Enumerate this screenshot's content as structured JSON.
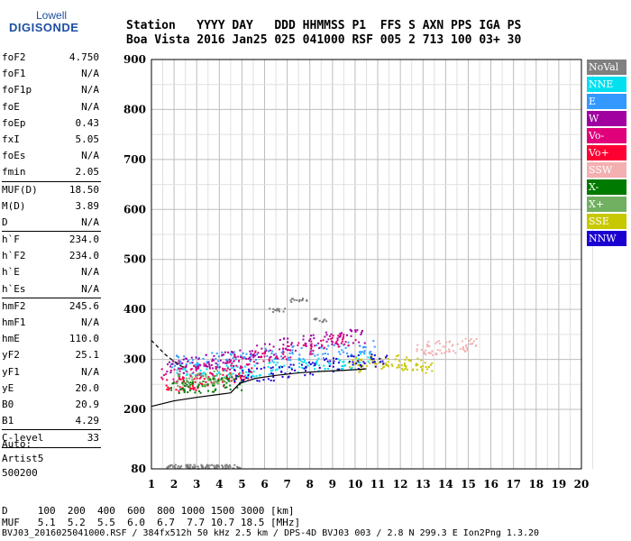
{
  "logo": {
    "top": "Lowell",
    "bottom": "DIGISONDE"
  },
  "header": {
    "line1": "Station   YYYY DAY   DDD HHMMSS P1  FFS S AXN PPS IGA PS",
    "line2": "Boa Vista 2016 Jan25 025 041000 RSF 005 2 713 100 03+ 30"
  },
  "params": [
    [
      {
        "name": "foF2",
        "value": "4.750"
      },
      {
        "name": "foF1",
        "value": "N/A"
      },
      {
        "name": "foF1p",
        "value": "N/A"
      },
      {
        "name": "foE",
        "value": "N/A"
      },
      {
        "name": "foEp",
        "value": "0.43"
      },
      {
        "name": "fxI",
        "value": "5.05"
      },
      {
        "name": "foEs",
        "value": "N/A"
      },
      {
        "name": "fmin",
        "value": "2.05"
      }
    ],
    [
      {
        "name": "MUF(D)",
        "value": "18.50"
      },
      {
        "name": "M(D)",
        "value": "3.89"
      },
      {
        "name": "D",
        "value": "N/A"
      }
    ],
    [
      {
        "name": "h`F",
        "value": "234.0"
      },
      {
        "name": "h`F2",
        "value": "234.0"
      },
      {
        "name": "h`E",
        "value": "N/A"
      },
      {
        "name": "h`Es",
        "value": "N/A"
      }
    ],
    [
      {
        "name": "hmF2",
        "value": "245.6"
      },
      {
        "name": "hmF1",
        "value": "N/A"
      },
      {
        "name": "hmE",
        "value": "110.0"
      },
      {
        "name": "yF2",
        "value": "25.1"
      },
      {
        "name": "yF1",
        "value": "N/A"
      },
      {
        "name": "yE",
        "value": "20.0"
      },
      {
        "name": "B0",
        "value": "20.9"
      },
      {
        "name": "B1",
        "value": "4.29"
      }
    ],
    [
      {
        "name": "C-level",
        "value": "33"
      }
    ]
  ],
  "auto": {
    "line1": "Auto:",
    "line2": "Artist5",
    "line3": "500200"
  },
  "legend": [
    {
      "label": "NoVal",
      "color": "#808080"
    },
    {
      "label": "NNE",
      "color": "#00e0f0"
    },
    {
      "label": "E",
      "color": "#3399ff"
    },
    {
      "label": "W",
      "color": "#a000a0"
    },
    {
      "label": "Vo-",
      "color": "#e0007a"
    },
    {
      "label": "Vo+",
      "color": "#ff0033"
    },
    {
      "label": "SSW",
      "color": "#f4b0b0"
    },
    {
      "label": "X-",
      "color": "#007a00"
    },
    {
      "label": "X+",
      "color": "#70b060"
    },
    {
      "label": "SSE",
      "color": "#c8c800"
    },
    {
      "label": "NNW",
      "color": "#1a00d0"
    }
  ],
  "bottom": {
    "line1": "D     100  200  400  600  800 1000 1500 3000 [km]",
    "line2": "MUF   5.1  5.2  5.5  6.0  6.7  7.7 10.7 18.5 [MHz]",
    "line3": "BVJ03_2016025041000.RSF / 384fx512h 50 kHz 2.5 km / DPS-4D BVJ03 003 / 2.8 N 299.3 E Ion2Png 1.3.20"
  },
  "chart_data": {
    "type": "scatter",
    "title": "",
    "xlabel": "",
    "ylabel": "",
    "xlim": [
      1,
      20
    ],
    "ylim": [
      80,
      900
    ],
    "x_ticks": [
      1,
      2,
      3,
      4,
      5,
      6,
      7,
      8,
      9,
      10,
      11,
      12,
      13,
      14,
      15,
      16,
      17,
      18,
      19,
      20
    ],
    "y_ticks": [
      80,
      200,
      300,
      400,
      500,
      600,
      700,
      800,
      900
    ],
    "grid": true,
    "legend_position": "right",
    "series": [
      {
        "name": "NNE",
        "x": [
          2.4,
          3.2,
          4.0,
          4.8,
          5.5,
          6.5,
          7.5,
          8.5,
          9.5,
          10.3
        ],
        "y": [
          282,
          278,
          276,
          276,
          280,
          284,
          288,
          292,
          296,
          300
        ]
      },
      {
        "name": "E",
        "x": [
          2.2,
          3.0,
          3.8,
          4.6,
          5.4,
          6.4,
          7.4,
          8.4,
          9.4,
          10.5
        ],
        "y": [
          296,
          300,
          302,
          304,
          306,
          310,
          314,
          318,
          322,
          326
        ]
      },
      {
        "name": "W",
        "x": [
          2.0,
          2.8,
          3.6,
          4.4,
          5.2,
          6.0,
          7.0,
          8.0,
          9.0,
          10.0
        ],
        "y": [
          288,
          294,
          298,
          304,
          312,
          320,
          330,
          338,
          344,
          348
        ]
      },
      {
        "name": "Vo-",
        "x": [
          1.8,
          2.5,
          3.3,
          4.1,
          4.9,
          5.8,
          6.8,
          7.8,
          8.8,
          9.6
        ],
        "y": [
          270,
          276,
          282,
          290,
          298,
          306,
          316,
          326,
          336,
          340
        ]
      },
      {
        "name": "Vo+",
        "x": [
          2.0,
          2.6,
          3.2,
          3.8,
          4.4,
          5.0
        ],
        "y": [
          250,
          254,
          258,
          262,
          266,
          272
        ]
      },
      {
        "name": "SSW",
        "x": [
          13.0,
          13.5,
          14.0,
          14.5,
          15.0
        ],
        "y": [
          320,
          325,
          328,
          330,
          332
        ]
      },
      {
        "name": "X-",
        "x": [
          2.2,
          2.8,
          3.4,
          4.0,
          4.6
        ],
        "y": [
          246,
          248,
          250,
          252,
          254
        ]
      },
      {
        "name": "X+",
        "x": [
          2.4,
          3.0,
          3.6,
          4.2
        ],
        "y": [
          260,
          262,
          264,
          266
        ]
      },
      {
        "name": "SSE",
        "x": [
          10.0,
          10.5,
          11.0,
          11.5,
          12.0,
          12.5,
          13.0
        ],
        "y": [
          292,
          290,
          296,
          300,
          294,
          290,
          286
        ]
      },
      {
        "name": "NNW",
        "x": [
          5.0,
          6.0,
          7.0,
          8.0,
          9.0,
          10.0,
          11.0
        ],
        "y": [
          268,
          272,
          278,
          284,
          290,
          296,
          300
        ]
      },
      {
        "name": "NoVal",
        "x": [
          2.0,
          2.5,
          3.0,
          3.5,
          4.0,
          4.5,
          6.5,
          7.5,
          8.5
        ],
        "y": [
          86,
          86,
          86,
          86,
          86,
          86,
          400,
          420,
          380
        ]
      }
    ],
    "trace": {
      "x": [
        1,
        2,
        3,
        4,
        4.5,
        4.9,
        5.6,
        6.5,
        7.5,
        8.5,
        9.5,
        10.5
      ],
      "y": [
        206,
        217,
        224,
        230,
        233,
        252,
        262,
        268,
        273,
        276,
        278,
        281
      ]
    },
    "trace_upper": {
      "x": [
        1,
        1.6,
        2.0,
        2.4
      ],
      "y": [
        338,
        310,
        296,
        284
      ]
    }
  }
}
